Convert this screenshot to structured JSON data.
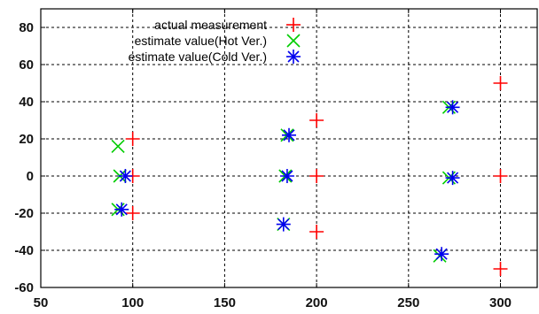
{
  "chart_data": {
    "type": "scatter",
    "title": "",
    "xlabel": "",
    "ylabel": "",
    "xlim": [
      50,
      320
    ],
    "ylim": [
      -60,
      90
    ],
    "xticks": [
      50,
      100,
      150,
      200,
      250,
      300
    ],
    "yticks": [
      -60,
      -40,
      -20,
      0,
      20,
      40,
      60,
      80
    ],
    "x_tick_labels": [
      "50",
      "100",
      "150",
      "200",
      "250",
      "300"
    ],
    "y_tick_labels": [
      "-60",
      "-40",
      "-20",
      "0",
      "20",
      "40",
      "60",
      "80"
    ],
    "grid": "dashed",
    "legend_position": "top-center",
    "series": [
      {
        "name": "actual measurement",
        "marker": "plus",
        "color": "#ff0000",
        "points": [
          [
            100,
            20
          ],
          [
            100,
            0
          ],
          [
            100,
            -20
          ],
          [
            200,
            30
          ],
          [
            200,
            0
          ],
          [
            200,
            -30
          ],
          [
            300,
            50
          ],
          [
            300,
            0
          ],
          [
            300,
            -50
          ]
        ]
      },
      {
        "name": "estimate value(Hot Ver.)",
        "marker": "cross",
        "color": "#00cc00",
        "points": [
          [
            92,
            16
          ],
          [
            93,
            0
          ],
          [
            92,
            -18
          ],
          [
            184,
            22
          ],
          [
            183,
            0
          ],
          [
            182,
            -26
          ],
          [
            272,
            37
          ],
          [
            272,
            -1
          ],
          [
            267,
            -43
          ]
        ]
      },
      {
        "name": "estimate value(Cold Ver.)",
        "marker": "star",
        "color": "#0000ee",
        "points": [
          [
            96,
            0
          ],
          [
            94,
            -18
          ],
          [
            185,
            22
          ],
          [
            184,
            0
          ],
          [
            182,
            -26
          ],
          [
            274,
            37
          ],
          [
            274,
            -1
          ],
          [
            268,
            -42
          ]
        ]
      }
    ]
  }
}
